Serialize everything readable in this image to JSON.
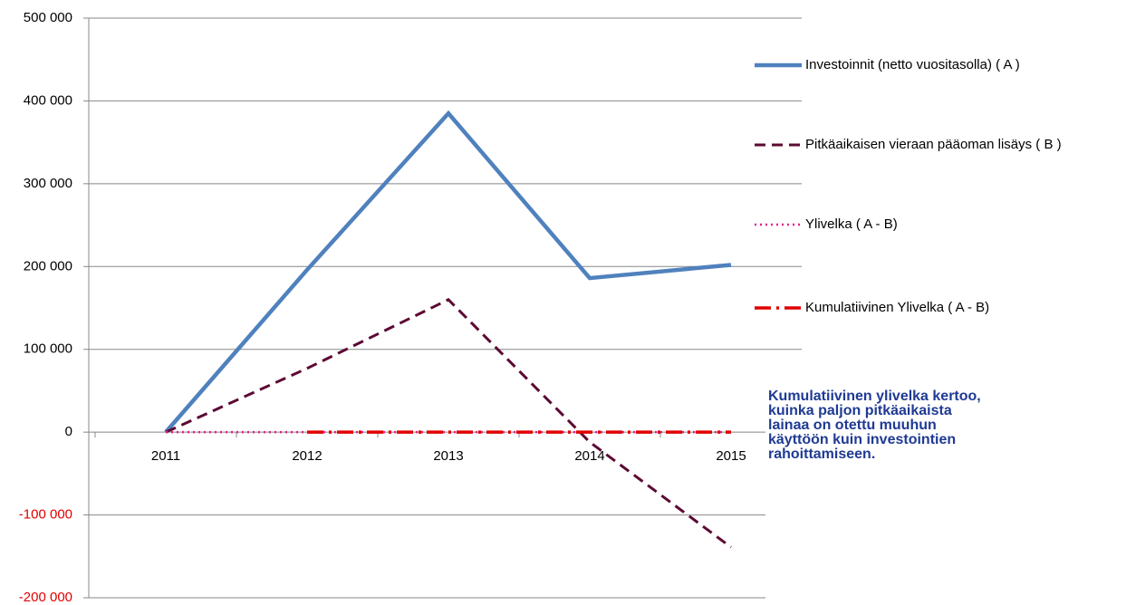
{
  "chart_data": {
    "type": "line",
    "categories": [
      "2011",
      "2012",
      "2013",
      "2014",
      "2015"
    ],
    "series": [
      {
        "name": "Investoinnit (netto vuositasolla) ( A )",
        "color": "#4f81bd",
        "style": "solid",
        "values": [
          0,
          196000,
          385000,
          186000,
          202000
        ]
      },
      {
        "name": "Pitkäaikaisen vieraan pääoman lisäys ( B )",
        "color": "#5c0a33",
        "style": "dashed",
        "values": [
          0,
          77000,
          160000,
          -12000,
          -139000
        ]
      },
      {
        "name": "Ylivelka ( A - B)",
        "color": "#e0218a",
        "style": "dotted",
        "values": [
          0,
          0,
          0,
          0,
          0
        ]
      },
      {
        "name": "Kumulatiivinen Ylivelka ( A - B)",
        "color": "#e00000",
        "style": "dashdot",
        "values": [
          null,
          0,
          0,
          0,
          0
        ]
      }
    ],
    "ylim": [
      -200000,
      500000
    ],
    "yticks": [
      {
        "value": -200000,
        "label": "-200 000"
      },
      {
        "value": -100000,
        "label": "-100 000"
      },
      {
        "value": 0,
        "label": "0"
      },
      {
        "value": 100000,
        "label": "100 000"
      },
      {
        "value": 200000,
        "label": "200 000"
      },
      {
        "value": 300000,
        "label": "300 000"
      },
      {
        "value": 400000,
        "label": "400 000"
      },
      {
        "value": 500000,
        "label": "500 000"
      }
    ],
    "negative_tick_color": "#e00000",
    "grid": true,
    "legend": "right",
    "annotation": [
      "Kumulatiivinen ylivelka kertoo,",
      "kuinka paljon pitkäaikaista",
      "lainaa on otettu muuhun",
      "käyttöön  kuin investointien",
      "rahoittamiseen."
    ],
    "annotation_color": "#1f3a93"
  }
}
